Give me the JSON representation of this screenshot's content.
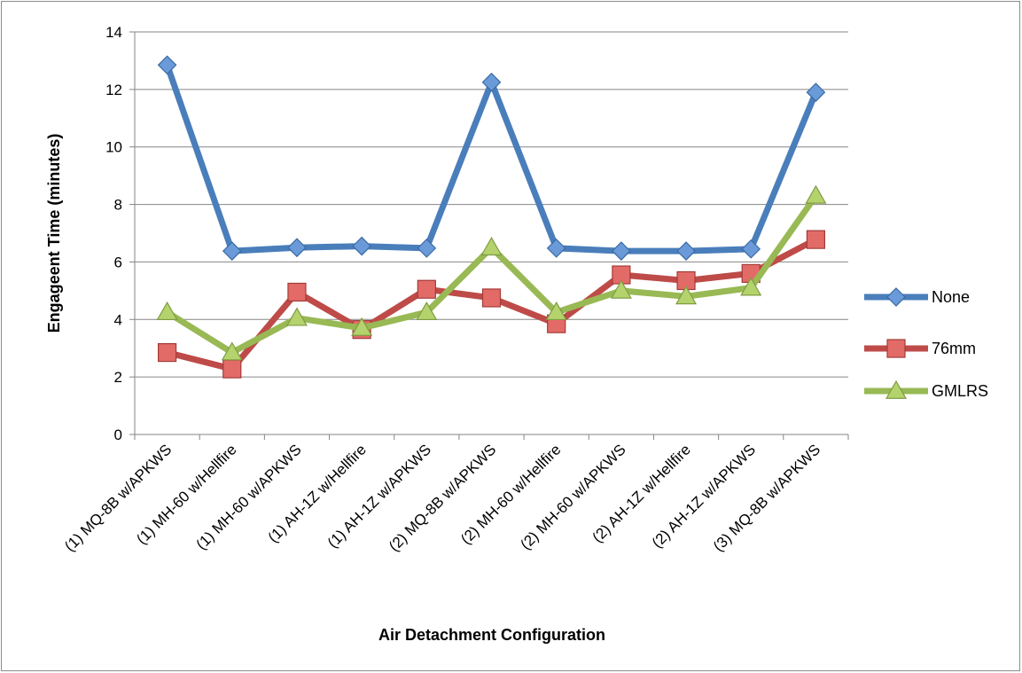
{
  "chart_data": {
    "type": "line",
    "title": "",
    "xlabel": "Air Detachment Configuration",
    "ylabel": "Engageent Time (minutes)",
    "ylim": [
      0,
      14
    ],
    "yticks": [
      "0",
      "2",
      "4",
      "6",
      "8",
      "10",
      "12",
      "14"
    ],
    "grid": true,
    "legend_position": "right",
    "categories": [
      "(1) MQ-8B w/APKWS",
      "(1) MH-60 w/Hellfire",
      "(1) MH-60 w/APKWS",
      "(1) AH-1Z w/Hellfire",
      "(1) AH-1Z w/APKWS",
      "(2) MQ-8B w/APKWS",
      "(2) MH-60 w/Hellfire",
      "(2) MH-60 w/APKWS",
      "(2) AH-1Z w/Hellfire",
      "(2) AH-1Z w/APKWS",
      "(3) MQ-8B w/APKWS"
    ],
    "series": [
      {
        "name": "None",
        "color": "#4a7ebb",
        "marker": "diamond",
        "values": [
          12.85,
          6.38,
          6.5,
          6.55,
          6.48,
          12.25,
          6.48,
          6.38,
          6.38,
          6.45,
          11.9
        ]
      },
      {
        "name": "76mm",
        "color": "#be4b48",
        "marker": "square",
        "values": [
          2.85,
          2.28,
          4.95,
          3.65,
          5.05,
          4.75,
          3.85,
          5.55,
          5.35,
          5.6,
          6.78
        ]
      },
      {
        "name": "GMLRS",
        "color": "#98b954",
        "marker": "triangle",
        "values": [
          4.25,
          2.85,
          4.05,
          3.7,
          4.25,
          6.5,
          4.25,
          5.0,
          4.8,
          5.1,
          8.3
        ]
      }
    ]
  }
}
